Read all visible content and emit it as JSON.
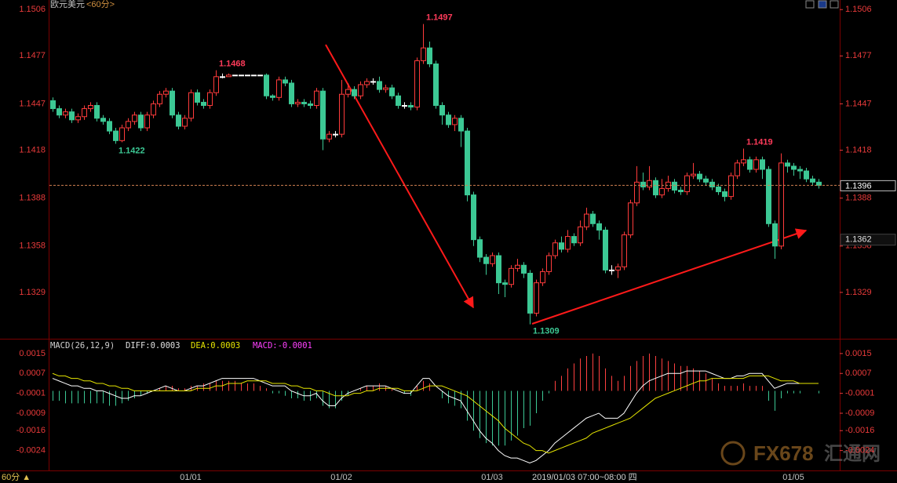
{
  "chart_data": [
    {
      "type": "candlestick",
      "title": "欧元美元",
      "subtitle": "<60分>",
      "period_label": "60分 ▲",
      "cursor_time": "2019/01/03 07:00~08:00 四",
      "watermark": [
        "FX678",
        "汇通网"
      ],
      "up_color": "#ff3b3b",
      "down_color": "#3cc894",
      "flat_color": "#ffffff",
      "high_label_color": "#ff3b5a",
      "low_label_color": "#3cc894",
      "ylim": [
        1.13,
        1.1512
      ],
      "yticks": [
        1.1506,
        1.1477,
        1.1447,
        1.1418,
        1.1388,
        1.1358,
        1.1329
      ],
      "last_price": 1.1396,
      "last_price_color": "#d08050",
      "cursor_price": 1.1362,
      "high_labels": [
        1.1497,
        1.1468,
        1.1419
      ],
      "low_labels": [
        1.1422,
        1.1309
      ],
      "categories": [
        null,
        null,
        null,
        null,
        null,
        null,
        null,
        null,
        null,
        null,
        null,
        null,
        null,
        null,
        null,
        null,
        null,
        null,
        null,
        null,
        null,
        null,
        "01/01",
        null,
        null,
        null,
        null,
        null,
        null,
        null,
        null,
        null,
        null,
        null,
        null,
        null,
        null,
        null,
        null,
        null,
        null,
        null,
        null,
        null,
        null,
        null,
        "01/02",
        null,
        null,
        null,
        null,
        null,
        null,
        null,
        null,
        null,
        null,
        null,
        null,
        null,
        null,
        null,
        null,
        null,
        null,
        null,
        null,
        null,
        null,
        null,
        "01/03",
        null,
        null,
        null,
        null,
        null,
        null,
        null,
        null,
        null,
        null,
        null,
        null,
        null,
        null,
        null,
        null,
        null,
        null,
        null,
        null,
        null,
        null,
        null,
        null,
        null,
        null,
        null,
        null,
        null,
        null,
        null,
        null,
        null,
        null,
        null,
        null,
        null,
        null,
        null,
        null,
        null,
        null,
        null,
        null,
        null,
        null,
        null,
        "01/05",
        null,
        null,
        null,
        null
      ],
      "open": [
        1.1449,
        1.1444,
        1.144,
        1.1442,
        1.1437,
        1.1439,
        1.1444,
        1.1446,
        1.1438,
        1.1436,
        1.143,
        1.1424,
        1.1432,
        1.1436,
        1.144,
        1.1432,
        1.144,
        1.1447,
        1.1453,
        1.1455,
        1.144,
        1.1433,
        1.1438,
        1.1454,
        1.1448,
        1.1446,
        1.1454,
        1.1464,
        1.1464,
        1.1465,
        1.1465,
        1.1465,
        1.1465,
        1.1465,
        1.1465,
        1.1452,
        1.1451,
        1.1462,
        1.146,
        1.1447,
        1.1448,
        1.1447,
        1.1446,
        1.1455,
        1.1425,
        1.1428,
        1.1428,
        1.1453,
        1.1456,
        1.1452,
        1.1459,
        1.1461,
        1.1461,
        1.1456,
        1.1457,
        1.1452,
        1.1446,
        1.1446,
        1.1445,
        1.1474,
        1.1482,
        1.1472,
        1.1446,
        1.144,
        1.1434,
        1.1438,
        1.143,
        1.139,
        1.1362,
        1.1351,
        1.1347,
        1.1352,
        1.1335,
        1.1334,
        1.1344,
        1.1346,
        1.1341,
        1.1316,
        1.1335,
        1.1342,
        1.1352,
        1.136,
        1.1356,
        1.1364,
        1.136,
        1.137,
        1.1378,
        1.1372,
        1.1368,
        1.1343,
        1.1343,
        1.1345,
        1.1365,
        1.1385,
        1.1398,
        1.1395,
        1.1399,
        1.139,
        1.1394,
        1.1398,
        1.1393,
        1.1392,
        1.1402,
        1.1403,
        1.14,
        1.1398,
        1.1395,
        1.1392,
        1.1389,
        1.1402,
        1.141,
        1.1412,
        1.1406,
        1.1412,
        1.1406,
        1.1372,
        1.1358,
        1.141,
        1.1408,
        1.1406,
        1.1405,
        1.14,
        1.1398
      ],
      "high": [
        1.1451,
        1.1446,
        1.1444,
        1.1444,
        1.1441,
        1.1446,
        1.1448,
        1.1448,
        1.144,
        1.1438,
        1.1432,
        1.1434,
        1.1438,
        1.1442,
        1.1442,
        1.1442,
        1.1449,
        1.1455,
        1.1457,
        1.1457,
        1.1442,
        1.144,
        1.1456,
        1.1456,
        1.145,
        1.1456,
        1.1468,
        1.1466,
        1.1466,
        1.1465,
        1.1465,
        1.1465,
        1.1465,
        1.1465,
        1.1466,
        1.1453,
        1.1464,
        1.1464,
        1.1462,
        1.145,
        1.145,
        1.1449,
        1.1457,
        1.1457,
        1.143,
        1.143,
        1.1462,
        1.146,
        1.1458,
        1.1461,
        1.1463,
        1.1463,
        1.1464,
        1.1459,
        1.1459,
        1.1454,
        1.1448,
        1.1448,
        1.1476,
        1.1497,
        1.1486,
        1.1474,
        1.1448,
        1.1442,
        1.144,
        1.144,
        1.1432,
        1.1392,
        1.1364,
        1.1353,
        1.1354,
        1.1354,
        1.1337,
        1.1346,
        1.135,
        1.1348,
        1.1343,
        1.1337,
        1.1344,
        1.1354,
        1.1362,
        1.1364,
        1.1368,
        1.1366,
        1.1374,
        1.1382,
        1.138,
        1.1374,
        1.137,
        1.1346,
        1.1347,
        1.1367,
        1.1387,
        1.1408,
        1.1404,
        1.1408,
        1.1401,
        1.14,
        1.1402,
        1.14,
        1.1395,
        1.1404,
        1.141,
        1.1405,
        1.1402,
        1.14,
        1.1397,
        1.1394,
        1.1404,
        1.1412,
        1.1419,
        1.1414,
        1.1414,
        1.1414,
        1.1408,
        1.1374,
        1.1416,
        1.1412,
        1.141,
        1.1408,
        1.1407,
        1.1402,
        1.14
      ],
      "low": [
        1.1442,
        1.1438,
        1.1438,
        1.1435,
        1.1435,
        1.1437,
        1.1442,
        1.1436,
        1.1434,
        1.1428,
        1.1422,
        1.1423,
        1.143,
        1.1434,
        1.143,
        1.143,
        1.1438,
        1.1445,
        1.1451,
        1.1438,
        1.1431,
        1.1431,
        1.1436,
        1.1446,
        1.1444,
        1.1444,
        1.1452,
        1.1463,
        1.1464,
        1.1465,
        1.1465,
        1.1465,
        1.1465,
        1.1465,
        1.145,
        1.1449,
        1.1449,
        1.1458,
        1.1445,
        1.1445,
        1.1445,
        1.1444,
        1.1444,
        1.1418,
        1.1423,
        1.1426,
        1.1426,
        1.1451,
        1.145,
        1.145,
        1.1457,
        1.1459,
        1.1454,
        1.1454,
        1.145,
        1.1444,
        1.1444,
        1.1443,
        1.1443,
        1.1472,
        1.147,
        1.1444,
        1.1434,
        1.1432,
        1.143,
        1.142,
        1.1386,
        1.1358,
        1.1348,
        1.134,
        1.1345,
        1.1328,
        1.1326,
        1.1332,
        1.1342,
        1.1338,
        1.1309,
        1.1314,
        1.1333,
        1.134,
        1.135,
        1.1354,
        1.1354,
        1.1358,
        1.1358,
        1.1368,
        1.137,
        1.1362,
        1.1341,
        1.134,
        1.1338,
        1.1343,
        1.1363,
        1.1383,
        1.1393,
        1.1393,
        1.1388,
        1.1388,
        1.1392,
        1.1391,
        1.139,
        1.139,
        1.14,
        1.1398,
        1.1396,
        1.1393,
        1.139,
        1.1386,
        1.1387,
        1.14,
        1.1408,
        1.1404,
        1.1404,
        1.14,
        1.137,
        1.135,
        1.1356,
        1.1404,
        1.1402,
        1.14,
        1.1398,
        1.1396,
        1.1394
      ],
      "close": [
        1.1444,
        1.144,
        1.1442,
        1.1437,
        1.1439,
        1.1444,
        1.1446,
        1.1438,
        1.1436,
        1.143,
        1.1424,
        1.1432,
        1.1436,
        1.144,
        1.1432,
        1.144,
        1.1447,
        1.1453,
        1.1455,
        1.144,
        1.1433,
        1.1438,
        1.1454,
        1.1448,
        1.1446,
        1.1454,
        1.1464,
        1.1464,
        1.1465,
        1.1465,
        1.1465,
        1.1465,
        1.1465,
        1.1465,
        1.1452,
        1.1451,
        1.1462,
        1.146,
        1.1447,
        1.1448,
        1.1447,
        1.1446,
        1.1455,
        1.1425,
        1.1428,
        1.1428,
        1.1453,
        1.1456,
        1.1452,
        1.1459,
        1.1461,
        1.1461,
        1.1456,
        1.1457,
        1.1452,
        1.1446,
        1.1446,
        1.1445,
        1.1474,
        1.1482,
        1.1472,
        1.1446,
        1.144,
        1.1434,
        1.1438,
        1.143,
        1.139,
        1.1362,
        1.1351,
        1.1347,
        1.1352,
        1.1335,
        1.1334,
        1.1344,
        1.1346,
        1.1341,
        1.1316,
        1.1335,
        1.1342,
        1.1352,
        1.136,
        1.1356,
        1.1364,
        1.136,
        1.137,
        1.1378,
        1.1372,
        1.1368,
        1.1343,
        1.1343,
        1.1345,
        1.1365,
        1.1385,
        1.1398,
        1.1395,
        1.1399,
        1.139,
        1.1394,
        1.1398,
        1.1393,
        1.1392,
        1.1402,
        1.1403,
        1.14,
        1.1398,
        1.1395,
        1.1392,
        1.1389,
        1.1402,
        1.141,
        1.1412,
        1.1406,
        1.1412,
        1.1406,
        1.1372,
        1.1358,
        1.141,
        1.1408,
        1.1406,
        1.1405,
        1.14,
        1.1398,
        1.1396
      ]
    },
    {
      "type": "macd",
      "title": "MACD(26,12,9)",
      "title_color": "#d0d0d0",
      "readouts": [
        {
          "text": "DIFF:0.0003",
          "color": "#e0e0e0"
        },
        {
          "text": "DEA:0.0003",
          "color": "#e6e600"
        },
        {
          "text": "MACD:-0.0001",
          "color": "#ff40ff"
        }
      ],
      "ylim": [
        -0.0032,
        0.002
      ],
      "yticks": [
        0.0015,
        0.0007,
        -0.0001,
        -0.0009,
        -0.0016,
        -0.0024
      ],
      "histogram": {
        "up_color": "#ff4040",
        "down_color": "#3cc894",
        "values": [
          -0.0004,
          -0.0004,
          -0.0005,
          -0.0005,
          -0.0005,
          -0.0005,
          -0.0005,
          -0.0005,
          -0.0005,
          -0.0006,
          -0.0006,
          -0.0005,
          -0.0004,
          -0.0003,
          -0.0002,
          -0.0001,
          0,
          0.0001,
          0.0002,
          0.0002,
          0.0001,
          0.0001,
          0.0002,
          0.0002,
          0.0003,
          0.0003,
          0.0004,
          0.0004,
          0.0004,
          0.0004,
          0.0003,
          0.0003,
          0.0003,
          0.0002,
          0.0001,
          -0.0001,
          -0.0001,
          -0.0002,
          -0.0003,
          -0.0003,
          -0.0004,
          -0.0004,
          -0.0003,
          -0.0006,
          -0.0007,
          -0.0007,
          -0.0004,
          -0.0002,
          0,
          0.0001,
          0.0002,
          0.0002,
          0.0003,
          0.0002,
          0.0001,
          0,
          -0.0001,
          -0.0002,
          0.0002,
          0.0004,
          0.0003,
          0,
          -0.0003,
          -0.0005,
          -0.0006,
          -0.0007,
          -0.0012,
          -0.0016,
          -0.0019,
          -0.0021,
          -0.0022,
          -0.0022,
          -0.0022,
          -0.002,
          -0.0018,
          -0.0015,
          -0.0014,
          -0.0009,
          -0.0004,
          -0.0001,
          0.0004,
          0.0006,
          0.0009,
          0.0011,
          0.0013,
          0.0014,
          0.0015,
          0.0014,
          0.0009,
          0.0006,
          0.0004,
          0.0006,
          0.001,
          0.0012,
          0.0014,
          0.0015,
          0.0014,
          0.0013,
          0.0012,
          0.0011,
          0.001,
          0.001,
          0.0009,
          0.0008,
          0.0007,
          0.0005,
          0.0003,
          0.0002,
          0.0002,
          0.0002,
          0.0003,
          0.0002,
          0.0002,
          0.0002,
          -0.0004,
          -0.0008,
          -0.0003,
          -0.0001,
          -0.0001,
          -0.0001,
          0,
          0,
          -0.0001
        ]
      },
      "series": [
        {
          "name": "DIFF",
          "color": "#ffffff",
          "values": [
            0.0005,
            0.0004,
            0.0003,
            0.0002,
            0.0002,
            0.0001,
            0.0001,
            0,
            0,
            -0.0001,
            -0.0002,
            -0.0003,
            -0.0003,
            -0.0002,
            -0.0002,
            -0.0001,
            0,
            0.0001,
            0.0002,
            0.0001,
            0,
            0,
            0.0001,
            0.0002,
            0.0002,
            0.0003,
            0.0004,
            0.0005,
            0.0005,
            0.0005,
            0.0005,
            0.0005,
            0.0005,
            0.0004,
            0.0003,
            0.0002,
            0.0002,
            0.0002,
            0,
            -0.0001,
            -0.0002,
            -0.0002,
            -0.0001,
            -0.0004,
            -0.0006,
            -0.0006,
            -0.0003,
            -0.0001,
            0,
            0.0001,
            0.0002,
            0.0002,
            0.0002,
            0.0002,
            0.0001,
            0,
            -0.0001,
            -0.0001,
            0.0002,
            0.0005,
            0.0005,
            0.0002,
            0,
            -0.0002,
            -0.0003,
            -0.0004,
            -0.0008,
            -0.0012,
            -0.0016,
            -0.0019,
            -0.0021,
            -0.0024,
            -0.0026,
            -0.0027,
            -0.0027,
            -0.0028,
            -0.0029,
            -0.0028,
            -0.0026,
            -0.0024,
            -0.0021,
            -0.0019,
            -0.0017,
            -0.0015,
            -0.0013,
            -0.0011,
            -0.001,
            -0.0009,
            -0.0011,
            -0.0011,
            -0.0011,
            -0.0009,
            -0.0005,
            -0.0001,
            0.0002,
            0.0004,
            0.0005,
            0.0006,
            0.0007,
            0.0007,
            0.0007,
            0.0008,
            0.0008,
            0.0008,
            0.0008,
            0.0007,
            0.0006,
            0.0005,
            0.0005,
            0.0006,
            0.0006,
            0.0007,
            0.0007,
            0.0007,
            0.0004,
            0.0001,
            0.0002,
            0.0003,
            0.0003,
            0.0003,
            0.0003,
            0.0003,
            0.0003
          ]
        },
        {
          "name": "DEA",
          "color": "#e6e600",
          "values": [
            0.0007,
            0.0006,
            0.0006,
            0.0005,
            0.0005,
            0.0004,
            0.0004,
            0.0003,
            0.0003,
            0.0002,
            0.0002,
            0.0001,
            0.0001,
            0,
            0,
            0,
            0,
            0,
            0,
            0,
            0,
            0,
            0,
            0.0001,
            0.0001,
            0.0001,
            0.0002,
            0.0002,
            0.0003,
            0.0003,
            0.0003,
            0.0004,
            0.0004,
            0.0004,
            0.0004,
            0.0003,
            0.0003,
            0.0003,
            0.0002,
            0.0002,
            0.0001,
            0.0001,
            0,
            0,
            -0.0001,
            -0.0002,
            -0.0002,
            -0.0002,
            -0.0001,
            -0.0001,
            0,
            0,
            0.0001,
            0.0001,
            0.0001,
            0.0001,
            0,
            0,
            0,
            0.0001,
            0.0002,
            0.0002,
            0.0002,
            0.0001,
            0,
            -0.0001,
            -0.0002,
            -0.0004,
            -0.0006,
            -0.0008,
            -0.001,
            -0.0012,
            -0.0015,
            -0.0017,
            -0.0019,
            -0.0021,
            -0.0022,
            -0.0024,
            -0.0024,
            -0.0025,
            -0.0024,
            -0.0023,
            -0.0022,
            -0.0021,
            -0.002,
            -0.0019,
            -0.0017,
            -0.0016,
            -0.0015,
            -0.0014,
            -0.0013,
            -0.0012,
            -0.0011,
            -0.0009,
            -0.0007,
            -0.0005,
            -0.0003,
            -0.0002,
            -0.0001,
            0,
            0.0001,
            0.0002,
            0.0003,
            0.0004,
            0.0004,
            0.0005,
            0.0005,
            0.0005,
            0.0005,
            0.0005,
            0.0005,
            0.0006,
            0.0006,
            0.0006,
            0.0006,
            0.0005,
            0.0004,
            0.0004,
            0.0004,
            0.0003,
            0.0003,
            0.0003,
            0.0003
          ]
        }
      ]
    }
  ]
}
